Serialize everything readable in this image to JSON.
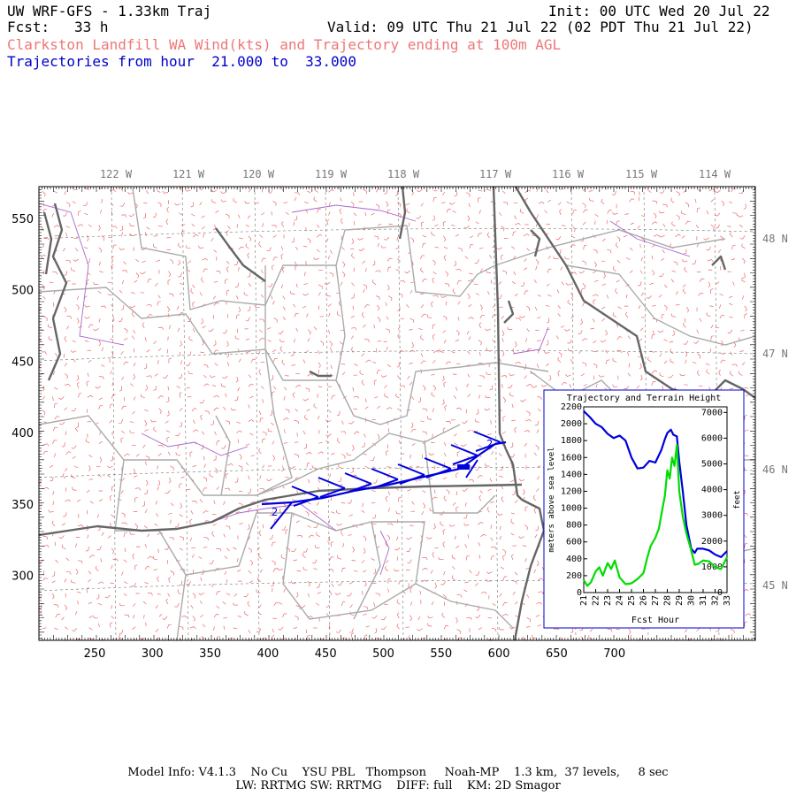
{
  "header": {
    "title": "UW WRF-GFS - 1.33km Traj",
    "init": "Init: 00 UTC Wed 20 Jul 22",
    "fcst_label": "Fcst:",
    "fcst_value": "33 h",
    "valid": "Valid: 09 UTC Thu 21 Jul 22 (02 PDT Thu 21 Jul 22)",
    "subtitle": "Clarkston Landfill WA Wind(kts) and Trajectory ending at 100m AGL",
    "traj_range": "Trajectories from hour  21.000 to  33.000"
  },
  "map": {
    "lon_labels": [
      "122 W",
      "121 W",
      "120 W",
      "119 W",
      "118 W",
      "117 W",
      "116 W",
      "115 W",
      "114 W"
    ],
    "lat_labels": [
      "48 N",
      "47 N",
      "46 N",
      "45 N"
    ],
    "x_ticks": [
      "250",
      "300",
      "350",
      "400",
      "450",
      "500",
      "550",
      "600",
      "650",
      "700"
    ],
    "y_ticks": [
      "550",
      "500",
      "450",
      "400",
      "350",
      "300"
    ],
    "traj_start_marker": "2",
    "traj_end_marker": "2",
    "colors": {
      "wind_barbs": "#ee6666",
      "trajectory": "#0000dd",
      "state_borders": "#666666",
      "county_borders": "#aaaaaa",
      "rivers": "#aa66cc",
      "grid": "#777777"
    }
  },
  "inset": {
    "title": "Trajectory and Terrain Height",
    "xlabel": "Fcst Hour",
    "ylabel_left": "meters above sea level",
    "ylabel_right": "feet",
    "y_left_ticks": [
      "2200",
      "2000",
      "1800",
      "1600",
      "1400",
      "1200",
      "1000",
      "800",
      "600",
      "400",
      "200",
      "0"
    ],
    "y_right_ticks": [
      "7000",
      "6000",
      "5000",
      "4000",
      "3000",
      "2000",
      "1000",
      "0"
    ],
    "x_ticks": [
      "21",
      "22",
      "23",
      "24",
      "25",
      "26",
      "27",
      "28",
      "29",
      "30",
      "31",
      "32",
      "33"
    ]
  },
  "chart_data": {
    "type": "line",
    "title": "Trajectory and Terrain Height",
    "xlabel": "Fcst Hour",
    "ylabel": "meters above sea level",
    "xlim": [
      21,
      33
    ],
    "ylim": [
      0,
      2200
    ],
    "series": [
      {
        "name": "trajectory",
        "color": "#0000dd",
        "x": [
          21.0,
          21.5,
          22.0,
          22.5,
          23.0,
          23.5,
          24.0,
          24.5,
          25.0,
          25.5,
          26.0,
          26.5,
          27.0,
          27.5,
          27.8,
          28.0,
          28.3,
          28.5,
          28.8,
          29.0,
          29.3,
          29.6,
          30.0,
          30.3,
          30.5,
          31.0,
          31.5,
          32.0,
          32.5,
          33.0
        ],
        "y": [
          2150,
          2080,
          2000,
          1960,
          1880,
          1830,
          1860,
          1800,
          1600,
          1470,
          1480,
          1560,
          1540,
          1690,
          1820,
          1890,
          1930,
          1870,
          1850,
          1550,
          1200,
          800,
          520,
          470,
          520,
          520,
          500,
          450,
          420,
          490
        ]
      },
      {
        "name": "terrain",
        "color": "#00dd00",
        "x": [
          21.0,
          21.3,
          21.6,
          22.0,
          22.3,
          22.6,
          23.0,
          23.3,
          23.6,
          24.0,
          24.5,
          25.0,
          25.5,
          26.0,
          26.3,
          26.6,
          27.0,
          27.3,
          27.6,
          27.8,
          28.0,
          28.2,
          28.4,
          28.6,
          28.8,
          29.0,
          29.3,
          29.6,
          30.0,
          30.3,
          30.6,
          31.0,
          31.5,
          32.0,
          32.5,
          33.0
        ],
        "y": [
          150,
          80,
          120,
          250,
          300,
          200,
          350,
          280,
          380,
          180,
          100,
          110,
          160,
          230,
          400,
          550,
          650,
          760,
          1000,
          1150,
          1450,
          1350,
          1600,
          1500,
          1750,
          1200,
          900,
          700,
          500,
          330,
          340,
          380,
          370,
          300,
          280,
          420
        ]
      }
    ]
  },
  "footer": {
    "line1": "Model Info: V4.1.3    No Cu    YSU PBL   Thompson     Noah-MP    1.3 km,  37 levels,     8 sec",
    "line2": "LW: RRTMG SW: RRTMG    DIFF: full    KM: 2D Smagor"
  }
}
